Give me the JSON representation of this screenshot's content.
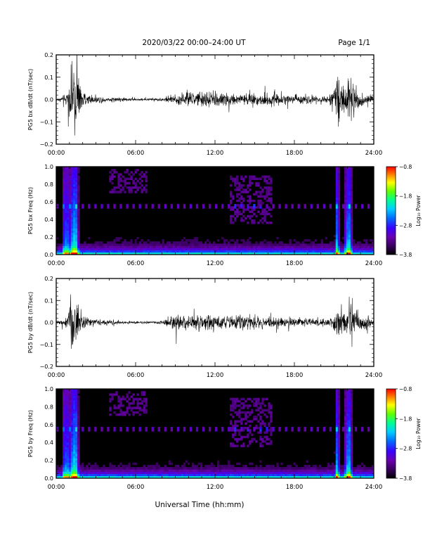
{
  "header": {
    "title": "2020/03/22  00:00–24:00 UT",
    "page": "Page 1/1"
  },
  "footer": {
    "xlabel": "Universal Time (hh:mm)"
  },
  "colors": {
    "trace": "#000000",
    "spectrogram_background": "#000000",
    "colormap": [
      "#000000",
      "#2a0040",
      "#6a00a8",
      "#4000ff",
      "#0060ff",
      "#00c8ff",
      "#00ff80",
      "#80ff00",
      "#ffff00",
      "#ff8000",
      "#ff0000"
    ]
  },
  "chart_data": [
    {
      "type": "line",
      "ylabel": "PG5 bx dB/dt (nT/sec)",
      "x_ticks": [
        "00:00",
        "06:00",
        "12:00",
        "18:00",
        "24:00"
      ],
      "xlim": [
        0,
        24
      ],
      "ylim": [
        -0.2,
        0.2
      ],
      "y_ticks": [
        "0.2",
        "0.1",
        "0.0",
        "−0.1",
        "−0.2"
      ],
      "y_tick_values": [
        0.2,
        0.1,
        0.0,
        -0.1,
        -0.2
      ],
      "envelope": {
        "hours": [
          0,
          0.5,
          0.9,
          1.1,
          1.3,
          1.6,
          2.0,
          3.0,
          4.0,
          5.0,
          6.0,
          7.0,
          8.0,
          8.8,
          9.5,
          10.5,
          11.5,
          12.5,
          13.5,
          14.5,
          15.5,
          16.5,
          17.5,
          18.5,
          19.5,
          20.5,
          21.0,
          21.3,
          21.6,
          21.9,
          22.2,
          22.5,
          23.0,
          23.5,
          24
        ],
        "amplitude": [
          0.01,
          0.02,
          0.08,
          0.2,
          0.25,
          0.2,
          0.06,
          0.03,
          0.02,
          0.015,
          0.01,
          0.01,
          0.012,
          0.035,
          0.05,
          0.06,
          0.07,
          0.06,
          0.05,
          0.055,
          0.06,
          0.05,
          0.04,
          0.035,
          0.03,
          0.035,
          0.08,
          0.25,
          0.12,
          0.1,
          0.25,
          0.15,
          0.06,
          0.05,
          0.04
        ]
      }
    },
    {
      "type": "heatmap",
      "ylabel": "PG5 bx Freq (Hz)",
      "x_ticks": [
        "00:00",
        "06:00",
        "12:00",
        "18:00",
        "24:00"
      ],
      "xlim": [
        0,
        24
      ],
      "ylim": [
        0,
        1.0
      ],
      "y_ticks": [
        "1.0",
        "0.8",
        "0.6",
        "0.4",
        "0.2",
        "0.0"
      ],
      "y_tick_values": [
        1.0,
        0.8,
        0.6,
        0.4,
        0.2,
        0.0
      ],
      "colorbar": {
        "label": "Log₁₀ Power",
        "ticks": [
          "−0.8",
          "−1.8",
          "−2.8",
          "−3.8"
        ],
        "tick_values": [
          -0.8,
          -1.8,
          -2.8,
          -3.8
        ],
        "range": [
          -3.8,
          -0.8
        ]
      },
      "features": {
        "broadband_bursts_hours": [
          0.65,
          0.95,
          1.15,
          1.35,
          1.55,
          21.25,
          21.95,
          22.2
        ],
        "spectral_line_hz": 0.55,
        "diffuse_bands": [
          {
            "hours": [
              4.0,
              6.8
            ],
            "hz": [
              0.7,
              0.98
            ]
          },
          {
            "hours": [
              13.2,
              16.3
            ],
            "hz": [
              0.35,
              0.9
            ]
          }
        ]
      }
    },
    {
      "type": "line",
      "ylabel": "PG5 by dB/dt (nT/sec)",
      "x_ticks": [
        "00:00",
        "06:00",
        "12:00",
        "18:00",
        "24:00"
      ],
      "xlim": [
        0,
        24
      ],
      "ylim": [
        -0.2,
        0.2
      ],
      "y_ticks": [
        "0.2",
        "0.1",
        "0.0",
        "−0.1",
        "−0.2"
      ],
      "y_tick_values": [
        0.2,
        0.1,
        0.0,
        -0.1,
        -0.2
      ],
      "envelope": {
        "hours": [
          0,
          0.5,
          0.9,
          1.1,
          1.3,
          1.6,
          2.0,
          3.0,
          4.0,
          5.0,
          6.0,
          7.0,
          8.0,
          8.8,
          9.5,
          10.5,
          11.5,
          12.5,
          13.5,
          14.5,
          15.5,
          16.5,
          17.5,
          18.5,
          19.5,
          20.5,
          21.0,
          21.3,
          21.6,
          21.9,
          22.2,
          22.5,
          23.0,
          23.5,
          24
        ],
        "amplitude": [
          0.01,
          0.02,
          0.08,
          0.25,
          0.25,
          0.18,
          0.05,
          0.025,
          0.02,
          0.015,
          0.01,
          0.01,
          0.012,
          0.06,
          0.05,
          0.06,
          0.07,
          0.06,
          0.06,
          0.07,
          0.06,
          0.05,
          0.04,
          0.03,
          0.03,
          0.035,
          0.07,
          0.12,
          0.1,
          0.12,
          0.25,
          0.12,
          0.06,
          0.05,
          0.04
        ]
      }
    },
    {
      "type": "heatmap",
      "ylabel": "PG5 by Freq (Hz)",
      "x_ticks": [
        "00:00",
        "06:00",
        "12:00",
        "18:00",
        "24:00"
      ],
      "xlim": [
        0,
        24
      ],
      "ylim": [
        0,
        1.0
      ],
      "y_ticks": [
        "1.0",
        "0.8",
        "0.6",
        "0.4",
        "0.2",
        "0.0"
      ],
      "y_tick_values": [
        1.0,
        0.8,
        0.6,
        0.4,
        0.2,
        0.0
      ],
      "colorbar": {
        "label": "Log₁₀ Power",
        "ticks": [
          "−0.8",
          "−1.8",
          "−2.8",
          "−3.8"
        ],
        "tick_values": [
          -0.8,
          -1.8,
          -2.8,
          -3.8
        ],
        "range": [
          -3.8,
          -0.8
        ]
      },
      "features": {
        "broadband_bursts_hours": [
          0.65,
          0.95,
          1.15,
          1.35,
          1.55,
          21.25,
          21.95,
          22.2
        ],
        "spectral_line_hz": 0.55,
        "diffuse_bands": [
          {
            "hours": [
              4.0,
              6.8
            ],
            "hz": [
              0.7,
              0.98
            ]
          },
          {
            "hours": [
              13.2,
              16.3
            ],
            "hz": [
              0.35,
              0.9
            ]
          }
        ]
      }
    }
  ]
}
